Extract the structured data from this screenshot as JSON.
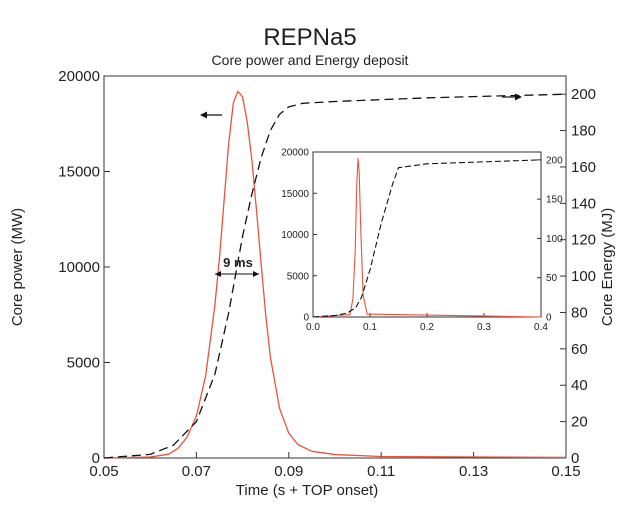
{
  "chart_data": {
    "type": "line",
    "title": "REPNa5",
    "subtitle": "Core power and Energy deposit",
    "xlabel": "Time (s + TOP onset)",
    "ylabel": "Core power (MW)",
    "y2label": "Core Energy (MJ)",
    "xlim": [
      0.05,
      0.15
    ],
    "ylim": [
      0,
      20000
    ],
    "y2lim": [
      0,
      210
    ],
    "x_ticks": [
      "0.05",
      "0.07",
      "0.09",
      "0.11",
      "0.13",
      "0.15"
    ],
    "y_ticks": [
      "0",
      "5000",
      "10000",
      "15000",
      "20000"
    ],
    "y2_ticks": [
      "0",
      "20",
      "40",
      "60",
      "80",
      "100",
      "120",
      "140",
      "160",
      "180",
      "200"
    ],
    "grid": false,
    "annotation": "9 ms",
    "colors": {
      "power": "#e8533f",
      "energy": "#111111"
    },
    "series": [
      {
        "axis": "left",
        "style": "solid",
        "x": [
          0.05,
          0.06,
          0.064,
          0.066,
          0.068,
          0.07,
          0.072,
          0.074,
          0.075,
          0.076,
          0.077,
          0.078,
          0.079,
          0.08,
          0.081,
          0.082,
          0.083,
          0.084,
          0.085,
          0.086,
          0.088,
          0.09,
          0.092,
          0.095,
          0.1,
          0.11,
          0.15
        ],
        "y": [
          0,
          50,
          200,
          500,
          1100,
          2200,
          4300,
          8000,
          10500,
          13500,
          16500,
          18600,
          19200,
          18900,
          17600,
          15600,
          13000,
          10200,
          7500,
          5300,
          2600,
          1300,
          700,
          350,
          180,
          80,
          30
        ]
      },
      {
        "axis": "right",
        "style": "dashed",
        "x": [
          0.05,
          0.06,
          0.065,
          0.07,
          0.074,
          0.077,
          0.08,
          0.082,
          0.084,
          0.086,
          0.088,
          0.09,
          0.093,
          0.1,
          0.12,
          0.15
        ],
        "y": [
          0,
          2,
          7,
          20,
          46,
          80,
          122,
          145,
          165,
          180,
          189,
          193,
          195,
          196,
          198,
          200
        ]
      }
    ],
    "inset": {
      "xlim": [
        0.0,
        0.4
      ],
      "ylim": [
        0,
        20000
      ],
      "y2lim": [
        0,
        210
      ],
      "x_ticks": [
        "0.0",
        "0.1",
        "0.2",
        "0.3",
        "0.4"
      ],
      "y_ticks": [
        "0",
        "5000",
        "10000",
        "15000",
        "20000"
      ],
      "y2_ticks": [
        "0",
        "50",
        "100",
        "150",
        "200"
      ],
      "series": [
        {
          "axis": "left",
          "style": "solid",
          "x": [
            0.0,
            0.065,
            0.07,
            0.074,
            0.077,
            0.079,
            0.081,
            0.084,
            0.088,
            0.095,
            0.4
          ],
          "y": [
            0,
            300,
            2200,
            8000,
            16500,
            19200,
            17600,
            10200,
            2600,
            350,
            0
          ]
        },
        {
          "axis": "right",
          "style": "dashed",
          "x": [
            0.0,
            0.04,
            0.06,
            0.075,
            0.085,
            0.1,
            0.12,
            0.14,
            0.15,
            0.2,
            0.4
          ],
          "y": [
            0,
            2,
            5,
            12,
            25,
            60,
            120,
            170,
            190,
            195,
            200
          ]
        }
      ]
    }
  }
}
